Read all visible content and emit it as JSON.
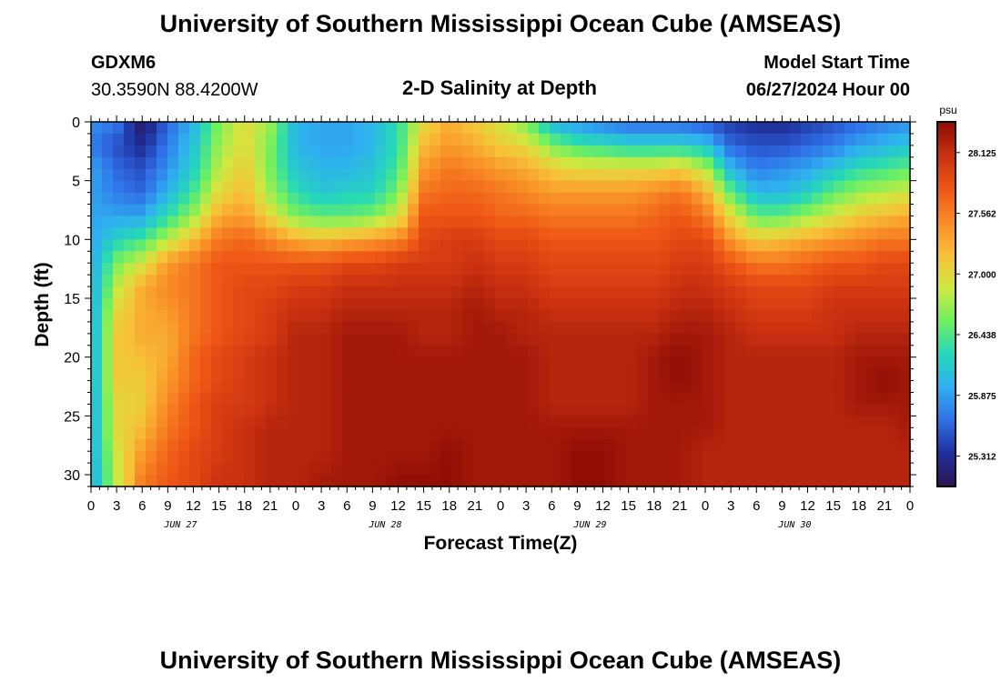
{
  "title": "University of Southern Mississippi Ocean Cube (AMSEAS)",
  "title_repeat": "University of Southern Mississippi Ocean Cube (AMSEAS)",
  "station": {
    "id": "GDXM6",
    "coords": "30.3590N  88.4200W"
  },
  "model_start": {
    "label": "Model Start Time",
    "value": "06/27/2024 Hour 00"
  },
  "plot_title": "2-D Salinity at Depth",
  "colorbar": {
    "unit": "psu",
    "ticks": [
      "28.125",
      "27.562",
      "27.000",
      "26.438",
      "25.875",
      "25.312"
    ]
  },
  "colors": {
    "scale": [
      "#2d1650",
      "#1e2f9a",
      "#3070e8",
      "#2fb0f0",
      "#25d8b8",
      "#70f060",
      "#d0e840",
      "#f8c038",
      "#f88a25",
      "#ee5515",
      "#c83010",
      "#8e0c05"
    ]
  },
  "chart_data": {
    "type": "heatmap",
    "title": "2-D Salinity at Depth",
    "xlabel": "Forecast Time(Z)",
    "ylabel": "Depth (ft)",
    "x_range_hours": [
      0,
      96
    ],
    "y_range_ft": [
      0,
      31
    ],
    "value_range_psu": [
      25.03,
      28.41
    ],
    "x_tick_labels": [
      "0",
      "3",
      "6",
      "9",
      "12",
      "15",
      "18",
      "21",
      "0",
      "3",
      "6",
      "9",
      "12",
      "15",
      "18",
      "21",
      "0",
      "3",
      "6",
      "9",
      "12",
      "15",
      "18",
      "21",
      "0",
      "3",
      "6",
      "9",
      "12",
      "15",
      "18",
      "21",
      "0"
    ],
    "y_ticks": [
      0,
      5,
      10,
      15,
      20,
      25,
      30
    ],
    "y_tick_labels": [
      "0",
      "5",
      "10",
      "15",
      "20",
      "25",
      "30"
    ],
    "date_labels": [
      "JUN 27",
      "JUN 28",
      "JUN 29",
      "JUN 30"
    ],
    "date_label_hours": [
      10.5,
      34.5,
      58.5,
      82.5
    ],
    "time_hours": [
      0,
      3,
      6,
      9,
      12,
      15,
      18,
      21,
      24,
      27,
      30,
      33,
      36,
      39,
      42,
      45,
      48,
      51,
      54,
      57,
      60,
      63,
      66,
      69,
      72,
      75,
      78,
      81,
      84,
      87,
      90,
      93,
      96
    ],
    "depth_ft": [
      0,
      2,
      4,
      6,
      8,
      10,
      12,
      14,
      16,
      18,
      20,
      22,
      24,
      26,
      28,
      31
    ],
    "salinity_psu": [
      [
        25.8,
        25.7,
        25.9,
        25.9,
        25.9,
        25.9,
        25.9,
        25.9,
        25.9,
        25.9,
        25.9,
        25.9,
        25.9,
        25.9,
        25.9,
        25.9
      ],
      [
        25.7,
        25.5,
        25.6,
        25.7,
        25.9,
        26.2,
        26.6,
        26.8,
        27.0,
        27.1,
        27.1,
        27.1,
        27.0,
        27.0,
        26.9,
        26.8
      ],
      [
        25.1,
        25.3,
        25.5,
        25.6,
        25.9,
        26.4,
        26.9,
        27.3,
        27.3,
        27.3,
        27.2,
        27.1,
        27.1,
        27.2,
        27.4,
        27.6
      ],
      [
        25.6,
        25.7,
        25.8,
        26.0,
        26.3,
        26.8,
        27.4,
        27.5,
        27.4,
        27.3,
        27.3,
        27.4,
        27.5,
        27.6,
        27.7,
        27.8
      ],
      [
        26.0,
        26.1,
        26.2,
        26.4,
        26.7,
        27.2,
        27.6,
        27.6,
        27.6,
        27.6,
        27.7,
        27.7,
        27.8,
        27.8,
        27.9,
        27.9
      ],
      [
        26.6,
        26.7,
        26.8,
        27.0,
        27.3,
        27.6,
        27.8,
        27.8,
        27.8,
        27.8,
        27.9,
        27.9,
        28.0,
        28.0,
        28.0,
        28.1
      ],
      [
        27.0,
        27.0,
        27.1,
        27.2,
        27.4,
        27.7,
        27.8,
        27.9,
        27.9,
        27.9,
        28.0,
        28.0,
        28.0,
        28.1,
        28.1,
        28.1
      ],
      [
        26.7,
        26.6,
        26.6,
        26.7,
        27.0,
        27.5,
        27.8,
        27.9,
        28.0,
        28.0,
        28.1,
        28.1,
        28.1,
        28.2,
        28.2,
        28.2
      ],
      [
        26.0,
        26.0,
        26.1,
        26.3,
        26.6,
        27.3,
        27.8,
        28.0,
        28.1,
        28.2,
        28.2,
        28.2,
        28.2,
        28.2,
        28.2,
        28.2
      ],
      [
        25.9,
        25.9,
        26.0,
        26.1,
        26.5,
        27.2,
        27.8,
        28.0,
        28.1,
        28.2,
        28.2,
        28.2,
        28.2,
        28.2,
        28.2,
        28.3
      ],
      [
        25.9,
        25.9,
        26.0,
        26.2,
        26.5,
        27.3,
        27.9,
        28.1,
        28.2,
        28.3,
        28.3,
        28.3,
        28.3,
        28.3,
        28.3,
        28.3
      ],
      [
        26.0,
        26.0,
        26.1,
        26.2,
        26.6,
        27.4,
        27.9,
        28.1,
        28.2,
        28.3,
        28.3,
        28.3,
        28.3,
        28.3,
        28.3,
        28.3
      ],
      [
        26.3,
        26.3,
        26.4,
        26.6,
        26.9,
        27.5,
        28.0,
        28.1,
        28.2,
        28.3,
        28.3,
        28.3,
        28.3,
        28.3,
        28.3,
        28.4
      ],
      [
        27.0,
        27.2,
        27.4,
        27.6,
        27.8,
        27.9,
        28.0,
        28.1,
        28.2,
        28.2,
        28.3,
        28.3,
        28.3,
        28.3,
        28.3,
        28.4
      ],
      [
        27.3,
        27.4,
        27.6,
        27.7,
        27.8,
        28.0,
        28.0,
        28.1,
        28.2,
        28.2,
        28.3,
        28.3,
        28.3,
        28.3,
        28.4,
        28.4
      ],
      [
        27.1,
        27.3,
        27.5,
        27.7,
        27.8,
        28.0,
        28.1,
        28.2,
        28.3,
        28.3,
        28.3,
        28.3,
        28.3,
        28.3,
        28.3,
        28.3
      ],
      [
        26.9,
        27.1,
        27.4,
        27.6,
        27.7,
        27.9,
        28.0,
        28.1,
        28.2,
        28.3,
        28.3,
        28.3,
        28.3,
        28.3,
        28.3,
        28.3
      ],
      [
        26.6,
        27.0,
        27.3,
        27.5,
        27.7,
        27.9,
        28.0,
        28.1,
        28.2,
        28.2,
        28.3,
        28.3,
        28.3,
        28.3,
        28.3,
        28.3
      ],
      [
        26.0,
        26.6,
        27.1,
        27.4,
        27.6,
        27.8,
        27.9,
        28.0,
        28.1,
        28.2,
        28.2,
        28.2,
        28.2,
        28.3,
        28.3,
        28.3
      ],
      [
        25.8,
        26.4,
        27.0,
        27.4,
        27.6,
        27.8,
        27.9,
        28.0,
        28.1,
        28.2,
        28.2,
        28.2,
        28.2,
        28.3,
        28.4,
        28.4
      ],
      [
        25.7,
        26.3,
        27.0,
        27.4,
        27.6,
        27.8,
        27.9,
        28.0,
        28.1,
        28.2,
        28.2,
        28.2,
        28.2,
        28.3,
        28.4,
        28.4
      ],
      [
        25.6,
        26.2,
        27.0,
        27.4,
        27.6,
        27.8,
        27.9,
        28.0,
        28.1,
        28.2,
        28.2,
        28.2,
        28.2,
        28.3,
        28.3,
        28.3
      ],
      [
        25.6,
        26.2,
        27.0,
        27.5,
        27.7,
        27.8,
        27.9,
        28.0,
        28.1,
        28.2,
        28.3,
        28.3,
        28.3,
        28.3,
        28.3,
        28.3
      ],
      [
        25.6,
        26.2,
        27.1,
        27.6,
        27.8,
        27.9,
        28.0,
        28.1,
        28.2,
        28.3,
        28.4,
        28.4,
        28.3,
        28.3,
        28.3,
        28.3
      ],
      [
        25.5,
        26.1,
        26.8,
        27.3,
        27.6,
        27.9,
        28.0,
        28.1,
        28.2,
        28.3,
        28.3,
        28.3,
        28.3,
        28.3,
        28.2,
        28.2
      ],
      [
        25.4,
        25.6,
        26.0,
        26.5,
        27.0,
        27.4,
        27.8,
        28.0,
        28.1,
        28.2,
        28.2,
        28.2,
        28.2,
        28.2,
        28.2,
        28.2
      ],
      [
        25.3,
        25.5,
        25.7,
        26.0,
        26.5,
        27.1,
        27.6,
        27.9,
        28.0,
        28.1,
        28.2,
        28.2,
        28.2,
        28.2,
        28.2,
        28.2
      ],
      [
        25.3,
        25.5,
        25.8,
        26.0,
        26.5,
        27.2,
        27.6,
        27.9,
        28.0,
        28.1,
        28.2,
        28.2,
        28.2,
        28.2,
        28.2,
        28.2
      ],
      [
        25.4,
        25.6,
        25.9,
        26.2,
        26.7,
        27.3,
        27.7,
        27.9,
        28.0,
        28.1,
        28.2,
        28.2,
        28.2,
        28.2,
        28.2,
        28.2
      ],
      [
        25.5,
        25.7,
        26.1,
        26.5,
        26.9,
        27.4,
        27.8,
        28.0,
        28.1,
        28.1,
        28.2,
        28.2,
        28.2,
        28.2,
        28.2,
        28.2
      ],
      [
        25.6,
        25.9,
        26.3,
        26.7,
        27.1,
        27.5,
        27.8,
        28.0,
        28.1,
        28.2,
        28.3,
        28.3,
        28.3,
        28.2,
        28.2,
        28.2
      ],
      [
        25.7,
        26.0,
        26.4,
        26.8,
        27.2,
        27.6,
        27.9,
        28.0,
        28.1,
        28.2,
        28.3,
        28.4,
        28.3,
        28.2,
        28.2,
        28.2
      ],
      [
        25.8,
        26.1,
        26.5,
        26.9,
        27.3,
        27.6,
        27.9,
        28.0,
        28.1,
        28.2,
        28.3,
        28.3,
        28.3,
        28.3,
        28.2,
        28.2
      ]
    ]
  }
}
